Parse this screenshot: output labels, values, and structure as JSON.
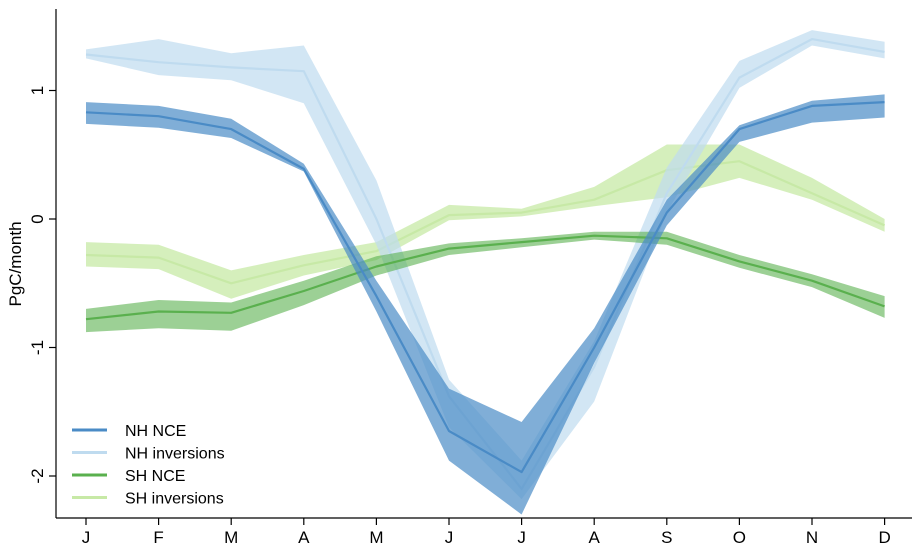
{
  "chart_data": {
    "type": "line",
    "title": "",
    "xlabel": "",
    "ylabel": "PgC/month",
    "categories": [
      "J",
      "F",
      "M",
      "A",
      "M",
      "J",
      "J",
      "A",
      "S",
      "O",
      "N",
      "D"
    ],
    "yticks": [
      1,
      0,
      -1,
      -2
    ],
    "ylim": [
      -2.4,
      1.6
    ],
    "grid": false,
    "legend_position": "bottom-left",
    "series": [
      {
        "name": "SH inversions",
        "color": "#c7e9a6",
        "band_opacity": 0.75,
        "values": [
          -0.28,
          -0.3,
          -0.5,
          -0.36,
          -0.25,
          0.03,
          0.05,
          0.15,
          0.38,
          0.45,
          0.2,
          -0.05
        ],
        "lower": [
          -0.37,
          -0.39,
          -0.62,
          -0.44,
          -0.32,
          -0.01,
          0.02,
          0.1,
          0.17,
          0.32,
          0.15,
          -0.1
        ],
        "upper": [
          -0.18,
          -0.2,
          -0.4,
          -0.28,
          -0.18,
          0.11,
          0.08,
          0.25,
          0.58,
          0.58,
          0.32,
          0.0
        ]
      },
      {
        "name": "NH inversions",
        "color": "#bfdbef",
        "band_opacity": 0.7,
        "values": [
          1.28,
          1.22,
          1.18,
          1.15,
          0.0,
          -1.38,
          -2.1,
          -1.15,
          0.2,
          1.1,
          1.4,
          1.3
        ],
        "lower": [
          1.25,
          1.12,
          1.08,
          0.9,
          -0.2,
          -1.62,
          -2.18,
          -1.42,
          0.05,
          1.02,
          1.35,
          1.25
        ],
        "upper": [
          1.32,
          1.4,
          1.29,
          1.35,
          0.3,
          -1.25,
          -1.88,
          -0.95,
          0.4,
          1.23,
          1.47,
          1.38
        ]
      },
      {
        "name": "SH NCE",
        "color": "#5ab04e",
        "band_opacity": 0.6,
        "values": [
          -0.78,
          -0.72,
          -0.73,
          -0.56,
          -0.37,
          -0.23,
          -0.18,
          -0.13,
          -0.15,
          -0.33,
          -0.48,
          -0.68
        ],
        "lower": [
          -0.88,
          -0.85,
          -0.87,
          -0.67,
          -0.44,
          -0.28,
          -0.22,
          -0.16,
          -0.2,
          -0.38,
          -0.53,
          -0.77
        ],
        "upper": [
          -0.7,
          -0.63,
          -0.65,
          -0.48,
          -0.29,
          -0.19,
          -0.15,
          -0.1,
          -0.1,
          -0.28,
          -0.43,
          -0.6
        ]
      },
      {
        "name": "NH NCE",
        "color": "#4a8bc6",
        "band_opacity": 0.7,
        "values": [
          0.83,
          0.8,
          0.7,
          0.39,
          -0.6,
          -1.65,
          -1.97,
          -1.0,
          0.05,
          0.7,
          0.88,
          0.91
        ],
        "lower": [
          0.74,
          0.71,
          0.63,
          0.37,
          -0.72,
          -1.88,
          -2.3,
          -1.12,
          -0.05,
          0.6,
          0.75,
          0.79
        ],
        "upper": [
          0.91,
          0.88,
          0.78,
          0.43,
          -0.48,
          -1.32,
          -1.58,
          -0.85,
          0.15,
          0.73,
          0.92,
          0.97
        ]
      }
    ],
    "legend": [
      {
        "label": "NH NCE",
        "color": "#4a8bc6"
      },
      {
        "label": "NH inversions",
        "color": "#bfdbef"
      },
      {
        "label": "SH NCE",
        "color": "#5ab04e"
      },
      {
        "label": "SH inversions",
        "color": "#c7e9a6"
      }
    ]
  }
}
